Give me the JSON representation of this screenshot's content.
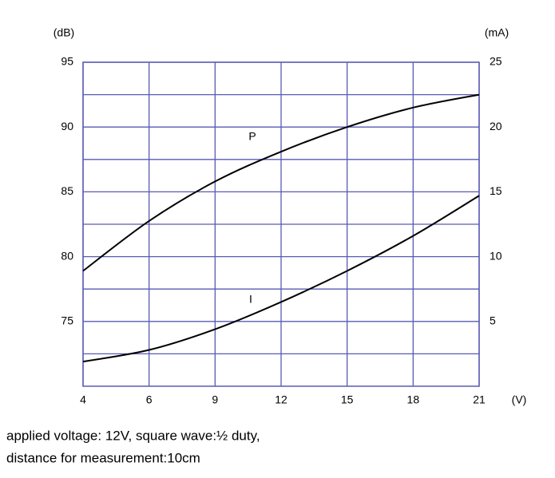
{
  "chart_data": {
    "type": "line",
    "y_unit": "(dB)",
    "y2_unit": "(mA)",
    "x_unit": "(V)",
    "categories": [
      4,
      6,
      9,
      12,
      15,
      18,
      21
    ],
    "series": [
      {
        "name": "P",
        "color": "#000000",
        "values": [
          78.9,
          82.75,
          85.8,
          88.1,
          90.0,
          91.5,
          92.5
        ]
      },
      {
        "name": "I",
        "color": "#000000",
        "axis": "y2",
        "values": [
          1.9,
          2.8,
          4.4,
          6.5,
          8.9,
          11.6,
          14.7
        ]
      }
    ],
    "ylim": [
      70,
      95
    ],
    "yticks": [
      75,
      80,
      85,
      90,
      95
    ],
    "y_minor_ticks": [
      72.5,
      77.5,
      82.5,
      87.5,
      92.5
    ],
    "y2lim": [
      0,
      25
    ],
    "y2ticks": [
      5,
      10,
      15,
      20,
      25
    ],
    "grid": true,
    "grid_color": "#5a5ab4",
    "notes": [
      "applied voltage: 12V, square wave:½ duty,",
      "distance for measurement:10cm"
    ]
  }
}
